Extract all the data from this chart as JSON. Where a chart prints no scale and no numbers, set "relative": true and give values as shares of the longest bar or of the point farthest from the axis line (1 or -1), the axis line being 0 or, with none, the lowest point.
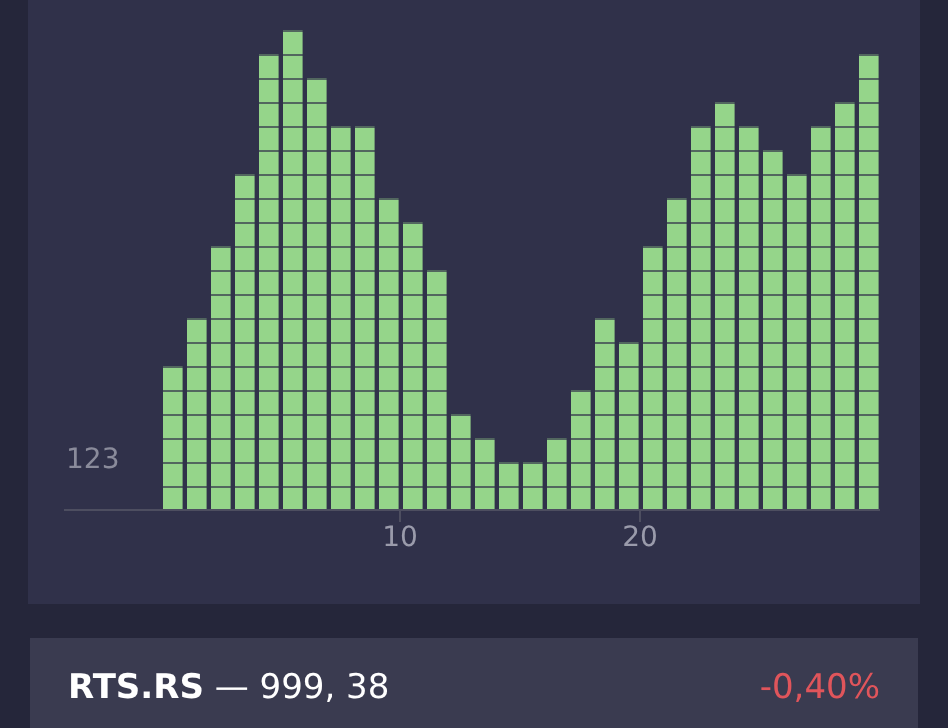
{
  "chart_data": {
    "type": "bar",
    "relative": true,
    "x": [
      0.5,
      1.5,
      2.5,
      3.5,
      4.5,
      5.5,
      6.5,
      7.5,
      8.5,
      9.5,
      10.5,
      11.5,
      12.5,
      13.5,
      14.5,
      15.5,
      16.5,
      17.5,
      18.5,
      19.5,
      20.5,
      21.5,
      22.5,
      23.5,
      24.5,
      25.5,
      26.5,
      27.5,
      28.5,
      29.5
    ],
    "values": [
      0.3,
      0.4,
      0.55,
      0.7,
      0.95,
      1,
      0.9,
      0.8,
      0.8,
      0.65,
      0.6,
      0.5,
      0.2,
      0.15,
      0.1,
      0.1,
      0.15,
      0.25,
      0.4,
      0.35,
      0.55,
      0.65,
      0.8,
      0.85,
      0.8,
      0.75,
      0.7,
      0.8,
      0.85,
      0.95
    ],
    "color": "#95d58a",
    "xlim": [
      -4,
      30
    ],
    "xticks": [
      10,
      20
    ],
    "annotations": [
      "123",
      "RTS.RS — 999, 38",
      "-0,40%"
    ]
  }
}
